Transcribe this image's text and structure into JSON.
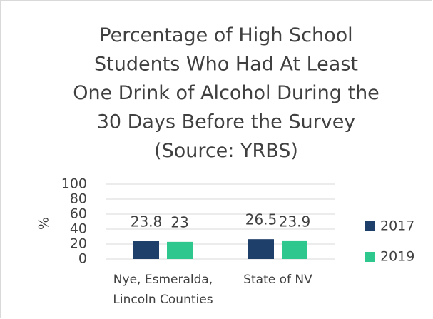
{
  "chart_data": {
    "type": "bar",
    "title": "Percentage of High School\nStudents Who Had At Least\nOne Drink of Alcohol During the\n30 Days Before the Survey\n(Source: YRBS)",
    "ylabel": "%",
    "categories": [
      "Nye, Esmeralda,\nLincoln Counties",
      "State of NV"
    ],
    "series": [
      {
        "name": "2017",
        "color": "#1f3f6b",
        "values": [
          23.8,
          26.5
        ]
      },
      {
        "name": "2019",
        "color": "#2ec88f",
        "values": [
          23,
          23.9
        ]
      }
    ],
    "ylim": [
      0,
      100
    ],
    "yticks": [
      0,
      20,
      40,
      60,
      80,
      100
    ],
    "grid": true,
    "legend": "right"
  }
}
